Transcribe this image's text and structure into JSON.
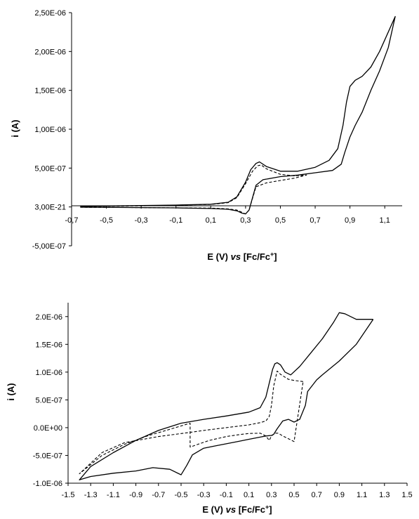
{
  "chart_data": [
    {
      "type": "line",
      "title": "",
      "xlabel": "E (V) vs [Fc/Fc+]",
      "xlabel_parts": [
        "E (V) ",
        "vs",
        " [Fc/Fc",
        "+",
        "]"
      ],
      "ylabel": "i (A)",
      "xlim": [
        -0.7,
        1.2
      ],
      "ylim": [
        -5e-07,
        2.5e-06
      ],
      "x_ticks": [
        -0.7,
        -0.5,
        -0.3,
        -0.1,
        0.1,
        0.3,
        0.5,
        0.7,
        0.9,
        1.1
      ],
      "x_tick_labels": [
        "-0,7",
        "-0,5",
        "-0,3",
        "-0,1",
        "0,1",
        "0,3",
        "0,5",
        "0,7",
        "0,9",
        "1,1"
      ],
      "y_ticks": [
        -5e-07,
        0,
        5e-07,
        1e-06,
        1.5e-06,
        2e-06,
        2.5e-06
      ],
      "y_tick_labels": [
        "-5,00E-07",
        "3,00E-21",
        "5,00E-07",
        "1,00E-06",
        "1,50E-06",
        "2,00E-06",
        "2,50E-06"
      ],
      "x_axis_crosses_y_at": 0,
      "grid": false,
      "legend": "none",
      "series": [
        {
          "style": "solid",
          "color": "#000000",
          "x": [
            -0.65,
            -0.5,
            -0.3,
            -0.1,
            0.1,
            0.2,
            0.25,
            0.3,
            0.33,
            0.36,
            0.38,
            0.42,
            0.5,
            0.6,
            0.7,
            0.78,
            0.83,
            0.86,
            0.88,
            0.9,
            0.93,
            0.97,
            1.02,
            1.07,
            1.12,
            1.16,
            1.16,
            1.12,
            1.07,
            1.02,
            0.97,
            0.93,
            0.9,
            0.87,
            0.85,
            0.8,
            0.7,
            0.6,
            0.5,
            0.4,
            0.36,
            0.34,
            0.32,
            0.3,
            0.28,
            0.25,
            0.2,
            0.1,
            -0.1,
            -0.3,
            -0.5,
            -0.65
          ],
          "y": [
            8e-09,
            1.2e-08,
            1.8e-08,
            2.4e-08,
            3.5e-08,
            6e-08,
            1.3e-07,
            3.2e-07,
            4.8e-07,
            5.6e-07,
            5.8e-07,
            5.2e-07,
            4.6e-07,
            4.6e-07,
            5.1e-07,
            6e-07,
            7.5e-07,
            1.05e-06,
            1.35e-06,
            1.55e-06,
            1.63e-06,
            1.68e-06,
            1.8e-06,
            2e-06,
            2.25e-06,
            2.45e-06,
            2.45e-06,
            2.05e-06,
            1.75e-06,
            1.5e-06,
            1.22e-06,
            1.05e-06,
            9e-07,
            7e-07,
            5.5e-07,
            4.7e-07,
            4.4e-07,
            4.1e-07,
            3.9e-07,
            3.5e-07,
            2.8e-07,
            1.2e-07,
            -4e-08,
            -9e-08,
            -8e-08,
            -5e-08,
            -3e-08,
            -2e-08,
            -1.2e-08,
            -8e-09,
            -5e-09,
            -3e-09
          ]
        },
        {
          "style": "dashed",
          "color": "#000000",
          "x": [
            -0.65,
            -0.3,
            0.1,
            0.2,
            0.25,
            0.3,
            0.34,
            0.37,
            0.39,
            0.42,
            0.5,
            0.58,
            0.65,
            0.65,
            0.58,
            0.5,
            0.42,
            0.36,
            0.34,
            0.32,
            0.3,
            0.28,
            0.25,
            0.2,
            0.1,
            -0.3,
            -0.65
          ],
          "y": [
            6e-09,
            1.4e-08,
            3.2e-08,
            5.5e-08,
            1.2e-07,
            3e-07,
            4.6e-07,
            5.3e-07,
            5.4e-07,
            4.9e-07,
            4.2e-07,
            4e-07,
            4.1e-07,
            4.1e-07,
            3.7e-07,
            3.4e-07,
            3.1e-07,
            2.6e-07,
            1.1e-07,
            -4e-08,
            -9e-08,
            -7e-08,
            -4e-08,
            -2.5e-08,
            -1.5e-08,
            -8e-09,
            -4e-09
          ]
        }
      ]
    },
    {
      "type": "line",
      "title": "",
      "xlabel": "E (V) vs [Fc/Fc+]",
      "xlabel_parts": [
        "E (V) ",
        "vs",
        " [Fc/Fc",
        "+",
        "]"
      ],
      "ylabel": "i (A)",
      "xlim": [
        -1.5,
        1.5
      ],
      "ylim": [
        -1e-06,
        2.25e-06
      ],
      "x_ticks": [
        -1.5,
        -1.3,
        -1.1,
        -0.9,
        -0.7,
        -0.5,
        -0.3,
        -0.1,
        0.1,
        0.3,
        0.5,
        0.7,
        0.9,
        1.1,
        1.3,
        1.5
      ],
      "x_tick_labels": [
        "-1.5",
        "-1.3",
        "-1.1",
        "-0.9",
        "-0.7",
        "-0.5",
        "-0.3",
        "-0.1",
        "0.1",
        "0.3",
        "0.5",
        "0.7",
        "0.9",
        "1.1",
        "1.3",
        "1.5"
      ],
      "y_ticks": [
        -1e-06,
        -5e-07,
        0,
        5e-07,
        1e-06,
        1.5e-06,
        2e-06
      ],
      "y_tick_labels": [
        "-1.0E-06",
        "-5.0E-07",
        "0.0E+00",
        "5.0E-07",
        "1.0E-06",
        "1.5E-06",
        "2.0E-06"
      ],
      "grid": false,
      "legend": "none",
      "series": [
        {
          "style": "solid",
          "color": "#000000",
          "x": [
            1.2,
            1.05,
            0.9,
            0.75,
            0.7,
            0.62,
            0.6,
            0.55,
            0.5,
            0.45,
            0.4,
            0.35,
            0.32,
            0.3,
            0.25,
            0.2,
            0.1,
            0.0,
            -0.1,
            -0.2,
            -0.3,
            -0.4,
            -0.45,
            -0.5,
            -0.6,
            -0.75,
            -0.9,
            -1.1,
            -1.3,
            -1.4,
            -1.4,
            -1.3,
            -1.1,
            -0.9,
            -0.7,
            -0.5,
            -0.3,
            -0.1,
            0.1,
            0.2,
            0.25,
            0.28,
            0.31,
            0.33,
            0.35,
            0.38,
            0.42,
            0.47,
            0.55,
            0.65,
            0.75,
            0.85,
            0.9,
            0.95,
            1.05,
            1.2,
            1.2
          ],
          "y": [
            1.95e-06,
            1.5e-06,
            1.2e-06,
            9.5e-07,
            8.6e-07,
            6.5e-07,
            4e-07,
            1.5e-07,
            1e-07,
            1.5e-07,
            1.2e-07,
            -2e-08,
            -1.2e-07,
            -1.4e-07,
            -1.5e-07,
            -1.7e-07,
            -2.1e-07,
            -2.5e-07,
            -2.9e-07,
            -3.3e-07,
            -3.7e-07,
            -4.9e-07,
            -6.8e-07,
            -8.5e-07,
            -7.5e-07,
            -7.2e-07,
            -7.8e-07,
            -8.2e-07,
            -8.8e-07,
            -9.4e-07,
            -9.4e-07,
            -7e-07,
            -4.5e-07,
            -2.3e-07,
            -5e-08,
            8e-08,
            1.5e-07,
            2.1e-07,
            2.8e-07,
            3.6e-07,
            5.5e-07,
            8e-07,
            1.05e-06,
            1.15e-06,
            1.17e-06,
            1.13e-06,
            1e-06,
            9.5e-07,
            1.1e-06,
            1.35e-06,
            1.6e-06,
            1.9e-06,
            2.07e-06,
            2.05e-06,
            1.95e-06,
            1.95e-06,
            1.95e-06
          ]
        },
        {
          "style": "dashed",
          "color": "#000000",
          "x": [
            0.58,
            0.5,
            0.45,
            0.38,
            0.35,
            0.32,
            0.3,
            0.28,
            0.25,
            0.2,
            0.1,
            -0.1,
            -0.3,
            -0.4,
            -0.4,
            -0.7,
            -1.0,
            -1.2,
            -1.4,
            -1.4,
            -1.2,
            -1.0,
            -0.8,
            -0.6,
            -0.42,
            -0.42,
            -0.35,
            -0.25,
            -0.1,
            0.0,
            0.1,
            0.2,
            0.25,
            0.28,
            0.3,
            0.33,
            0.36,
            0.4,
            0.5,
            0.58
          ],
          "y": [
            8.3e-07,
            8.5e-07,
            8.7e-07,
            9.6e-07,
            1.02e-06,
            7.5e-07,
            4e-07,
            2e-07,
            1.2e-07,
            9e-08,
            5e-08,
            0.0,
            -5e-08,
            -8e-08,
            -8e-08,
            -1.6e-07,
            -2.7e-07,
            -4.5e-07,
            -8.3e-07,
            -8.3e-07,
            -5e-07,
            -3e-07,
            -1.5e-07,
            -3e-08,
            8e-08,
            -3.5e-07,
            -3e-07,
            -2.3e-07,
            -1.6e-07,
            -1.3e-07,
            -1.05e-07,
            -1e-07,
            -1.5e-07,
            -2.3e-07,
            -1.5e-07,
            -1e-07,
            -1e-07,
            -1.5e-07,
            -2.5e-07,
            8.3e-07
          ]
        }
      ]
    }
  ]
}
